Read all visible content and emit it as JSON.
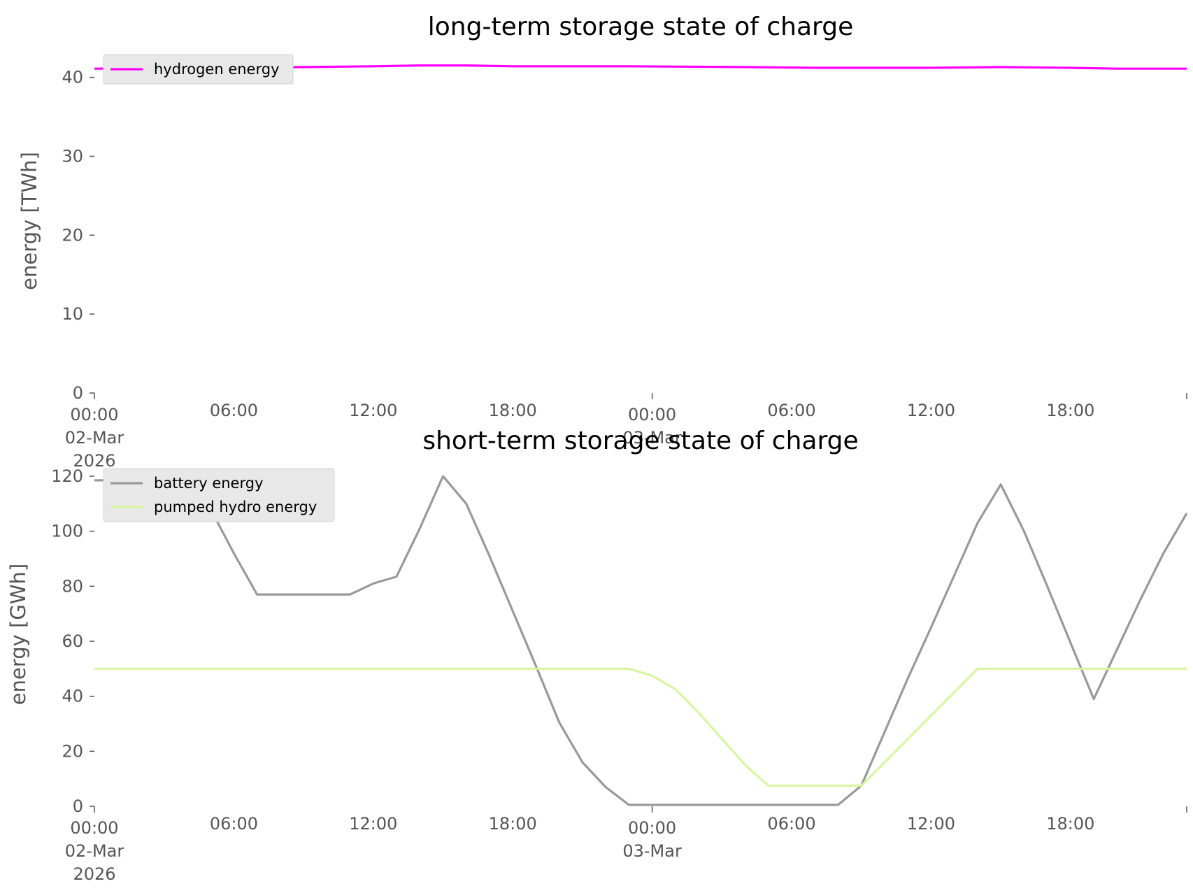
{
  "chart_data": [
    {
      "type": "line",
      "title": "long-term storage state of charge",
      "xlabel": "",
      "ylabel": "energy [TWh]",
      "ylim": [
        0,
        42
      ],
      "xlim": [
        "2026-03-02 00:00",
        "2026-03-03 23:00"
      ],
      "yticks": [
        "0",
        "10",
        "20",
        "30",
        "40"
      ],
      "xticks": [
        [
          "00:00",
          "02-Mar",
          "2026"
        ],
        [
          "06:00"
        ],
        [
          "12:00"
        ],
        [
          "18:00"
        ],
        [
          "00:00",
          "03-Mar"
        ],
        [
          "06:00"
        ],
        [
          "12:00"
        ],
        [
          "18:00"
        ]
      ],
      "grid": false,
      "legend": "upper left",
      "series": [
        {
          "name": "hydrogen energy",
          "color": "#ff00ff",
          "x": [
            "2026-03-02 00:00",
            "2026-03-02 06:00",
            "2026-03-02 12:00",
            "2026-03-02 14:00",
            "2026-03-02 16:00",
            "2026-03-02 18:00",
            "2026-03-02 23:00",
            "2026-03-03 04:00",
            "2026-03-03 07:00",
            "2026-03-03 12:00",
            "2026-03-03 15:00",
            "2026-03-03 18:00",
            "2026-03-03 20:00",
            "2026-03-03 23:00"
          ],
          "y": [
            41.1,
            41.2,
            41.4,
            41.5,
            41.5,
            41.4,
            41.4,
            41.3,
            41.2,
            41.2,
            41.3,
            41.2,
            41.1,
            41.1
          ]
        }
      ]
    },
    {
      "type": "line",
      "title": "short-term storage state of charge",
      "xlabel": "",
      "ylabel": "energy [GWh]",
      "ylim": [
        0,
        120
      ],
      "xlim": [
        "2026-03-02 00:00",
        "2026-03-03 23:00"
      ],
      "yticks": [
        "0",
        "20",
        "40",
        "60",
        "80",
        "100",
        "120"
      ],
      "xticks": [
        [
          "00:00",
          "02-Mar",
          "2026"
        ],
        [
          "06:00"
        ],
        [
          "12:00"
        ],
        [
          "18:00"
        ],
        [
          "00:00",
          "03-Mar"
        ],
        [
          "06:00"
        ],
        [
          "12:00"
        ],
        [
          "18:00"
        ]
      ],
      "grid": false,
      "legend": "upper left",
      "series": [
        {
          "name": "battery energy",
          "color": "#999999",
          "x": [
            "2026-03-02 00:00",
            "2026-03-02 01:00",
            "2026-03-02 02:00",
            "2026-03-02 03:00",
            "2026-03-02 04:00",
            "2026-03-02 05:00",
            "2026-03-02 06:00",
            "2026-03-02 07:00",
            "2026-03-02 08:00",
            "2026-03-02 09:00",
            "2026-03-02 10:00",
            "2026-03-02 11:00",
            "2026-03-02 12:00",
            "2026-03-02 13:00",
            "2026-03-02 14:00",
            "2026-03-02 15:00",
            "2026-03-02 16:00",
            "2026-03-02 17:00",
            "2026-03-02 18:00",
            "2026-03-02 19:00",
            "2026-03-02 20:00",
            "2026-03-02 21:00",
            "2026-03-02 22:00",
            "2026-03-02 23:00",
            "2026-03-03 00:00",
            "2026-03-03 01:00",
            "2026-03-03 02:00",
            "2026-03-03 03:00",
            "2026-03-03 04:00",
            "2026-03-03 05:00",
            "2026-03-03 06:00",
            "2026-03-03 07:00",
            "2026-03-03 08:00",
            "2026-03-03 09:00",
            "2026-03-03 10:00",
            "2026-03-03 11:00",
            "2026-03-03 12:00",
            "2026-03-03 13:00",
            "2026-03-03 14:00",
            "2026-03-03 15:00",
            "2026-03-03 16:00",
            "2026-03-03 17:00",
            "2026-03-03 18:00",
            "2026-03-03 19:00",
            "2026-03-03 20:00",
            "2026-03-03 21:00",
            "2026-03-03 22:00",
            "2026-03-03 23:00"
          ],
          "y": [
            118.5,
            118.5,
            118.5,
            118.5,
            118.5,
            108,
            92,
            77,
            77,
            77,
            77,
            77,
            81,
            83.5,
            101,
            120,
            110,
            91,
            71,
            51,
            30.5,
            16,
            7,
            0.5,
            0.5,
            0.5,
            0.5,
            0.5,
            0.5,
            0.5,
            0.5,
            0.5,
            0.5,
            7.5,
            27,
            46.5,
            65,
            84,
            103,
            117,
            100,
            80,
            59.5,
            39,
            57,
            75,
            92,
            106.5
          ]
        },
        {
          "name": "pumped hydro energy",
          "color": "#d8f5a2",
          "x": [
            "2026-03-02 00:00",
            "2026-03-02 23:00",
            "2026-03-03 00:00",
            "2026-03-03 01:00",
            "2026-03-03 02:00",
            "2026-03-03 03:00",
            "2026-03-03 04:00",
            "2026-03-03 05:00",
            "2026-03-03 06:00",
            "2026-03-03 07:00",
            "2026-03-03 08:00",
            "2026-03-03 09:00",
            "2026-03-03 10:00",
            "2026-03-03 11:00",
            "2026-03-03 12:00",
            "2026-03-03 13:00",
            "2026-03-03 14:00",
            "2026-03-03 23:00"
          ],
          "y": [
            50,
            50,
            47.5,
            42.5,
            34,
            24.5,
            15,
            7.5,
            7.5,
            7.5,
            7.5,
            7.5,
            16,
            24.5,
            33,
            41.5,
            50,
            50
          ]
        }
      ]
    }
  ]
}
